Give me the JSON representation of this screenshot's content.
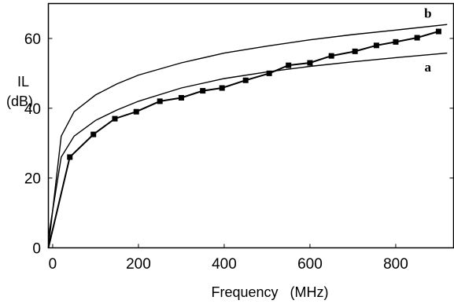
{
  "chart_data": {
    "type": "line",
    "title": "",
    "xlabel": "Frequency   (MHz)",
    "ylabel_line1": "IL",
    "ylabel_line2": "(dB)",
    "xlim": [
      -10,
      935
    ],
    "ylim": [
      0,
      70
    ],
    "x_ticks": [
      0,
      200,
      400,
      600,
      800
    ],
    "y_ticks": [
      0,
      20,
      40,
      60
    ],
    "grid": false,
    "annotations": [
      {
        "text": "b",
        "x": 875,
        "y": 66
      },
      {
        "text": "a",
        "x": 875,
        "y": 50.5
      }
    ],
    "series": [
      {
        "name": "b",
        "style": "line",
        "x": [
          -10,
          20,
          50,
          100,
          150,
          200,
          300,
          400,
          500,
          600,
          700,
          800,
          920
        ],
        "y": [
          0,
          32,
          39,
          43.8,
          47,
          49.5,
          53,
          55.8,
          57.8,
          59.6,
          61.1,
          62.4,
          64
        ]
      },
      {
        "name": "a",
        "style": "line",
        "x": [
          -10,
          20,
          50,
          100,
          150,
          200,
          300,
          400,
          500,
          600,
          700,
          800,
          920
        ],
        "y": [
          3,
          26,
          32,
          36.5,
          39.5,
          42,
          45.8,
          48.5,
          50.4,
          52,
          53.3,
          54.5,
          55.8
        ]
      },
      {
        "name": "",
        "style": "line-markers",
        "x": [
          -10,
          40,
          95,
          145,
          195,
          250,
          300,
          350,
          395,
          450,
          505,
          550,
          600,
          650,
          705,
          755,
          800,
          850,
          900
        ],
        "y": [
          0,
          26,
          32.5,
          37,
          39,
          42,
          43,
          45,
          45.8,
          48,
          50,
          52.3,
          53,
          55,
          56.3,
          58,
          59,
          60.2,
          62
        ]
      }
    ]
  }
}
